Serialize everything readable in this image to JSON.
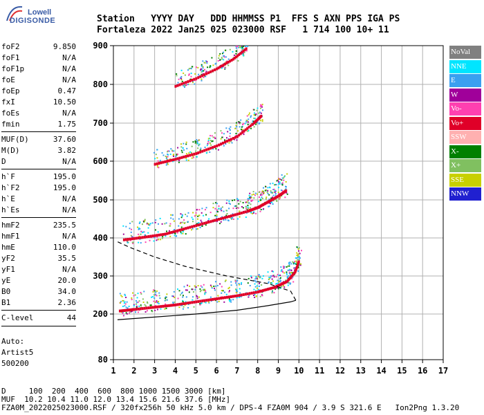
{
  "logo": {
    "line1": "Lowell",
    "line2": "DIGISONDE"
  },
  "header": {
    "line1": "Station   YYYY DAY   DDD HHMMSS P1  FFS S AXN PPS IGA PS",
    "line2": "Fortaleza 2022 Jan25 025 023000 RSF   1 714 100 10+ 11"
  },
  "params": [
    {
      "k": "foF2",
      "v": "9.850"
    },
    {
      "k": "foF1",
      "v": "N/A"
    },
    {
      "k": "foF1p",
      "v": "N/A"
    },
    {
      "k": "foE",
      "v": "N/A"
    },
    {
      "k": "foEp",
      "v": "0.47"
    },
    {
      "k": "fxI",
      "v": "10.50"
    },
    {
      "k": "foEs",
      "v": "N/A"
    },
    {
      "k": "fmin",
      "v": "1.75"
    },
    {
      "k": "MUF(D)",
      "v": "37.60"
    },
    {
      "k": "M(D)",
      "v": "3.82"
    },
    {
      "k": "D",
      "v": "N/A"
    },
    {
      "k": "h`F",
      "v": "195.0"
    },
    {
      "k": "h`F2",
      "v": "195.0"
    },
    {
      "k": "h`E",
      "v": "N/A"
    },
    {
      "k": "h`Es",
      "v": "N/A"
    },
    {
      "k": "hmF2",
      "v": "235.5"
    },
    {
      "k": "hmF1",
      "v": "N/A"
    },
    {
      "k": "hmE",
      "v": "110.0"
    },
    {
      "k": "yF2",
      "v": "35.5"
    },
    {
      "k": "yF1",
      "v": "N/A"
    },
    {
      "k": "yE",
      "v": "20.0"
    },
    {
      "k": "B0",
      "v": "34.0"
    },
    {
      "k": "B1",
      "v": "2.36"
    },
    {
      "k": "C-level",
      "v": "44"
    }
  ],
  "auto": {
    "label": "Auto:",
    "software": "Artist5",
    "id": "500200"
  },
  "footer": {
    "line1": "D     100  200  400  600  800 1000 1500 3000 [km]",
    "line2": "MUF  10.2 10.4 11.0 12.0 13.4 15.6 21.6 37.6 [MHz]",
    "line3": "FZA0M_2022025023000.RSF / 320fx256h 50 kHz 5.0 km / DPS-4 FZA0M 904 / 3.9 S 321.6 E   Ion2Png 1.3.20"
  },
  "legend": [
    {
      "label": "NoVal",
      "bg": "#808080",
      "fg": "#ffffff"
    },
    {
      "label": "NNE",
      "bg": "#00e5ff",
      "fg": "#ffffff"
    },
    {
      "label": "E",
      "bg": "#3aa0f0",
      "fg": "#ffffff"
    },
    {
      "label": "W",
      "bg": "#a0009a",
      "fg": "#ffffff"
    },
    {
      "label": "Vo-",
      "bg": "#ff40b0",
      "fg": "#ffffff"
    },
    {
      "label": "Vo+",
      "bg": "#e00028",
      "fg": "#ffffff"
    },
    {
      "label": "SSW",
      "bg": "#ffb0b0",
      "fg": "#ffffff"
    },
    {
      "label": "X-",
      "bg": "#008000",
      "fg": "#ffffff"
    },
    {
      "label": "X+",
      "bg": "#80c060",
      "fg": "#ffffff"
    },
    {
      "label": "SSE",
      "bg": "#c8d000",
      "fg": "#ffffff"
    },
    {
      "label": "NNW",
      "bg": "#2020d0",
      "fg": "#ffffff"
    }
  ],
  "chart_data": {
    "type": "scatter",
    "title": "",
    "xlabel": "",
    "ylabel": "",
    "xlim": [
      1,
      17
    ],
    "ylim": [
      80,
      900
    ],
    "x_ticks": [
      "1",
      "2",
      "3",
      "4",
      "5",
      "6",
      "7",
      "8",
      "9",
      "10",
      "11",
      "12",
      "13",
      "14",
      "15",
      "16",
      "17"
    ],
    "y_ticks": [
      "80",
      "200",
      "300",
      "400",
      "500",
      "600",
      "700",
      "800",
      "900"
    ],
    "grid": true,
    "traces": [
      {
        "name": "F2 O-trace (1st hop)",
        "color": "#e00028",
        "points": [
          [
            1.3,
            208
          ],
          [
            2,
            212
          ],
          [
            3,
            218
          ],
          [
            4,
            224
          ],
          [
            5,
            232
          ],
          [
            6,
            240
          ],
          [
            7,
            248
          ],
          [
            8,
            258
          ],
          [
            8.8,
            270
          ],
          [
            9.4,
            285
          ],
          [
            9.8,
            310
          ],
          [
            10,
            340
          ]
        ]
      },
      {
        "name": "F2 O-trace (2nd hop)",
        "color": "#e00028",
        "points": [
          [
            1.5,
            395
          ],
          [
            2.5,
            402
          ],
          [
            3.5,
            410
          ],
          [
            4.5,
            425
          ],
          [
            5.5,
            440
          ],
          [
            6.5,
            455
          ],
          [
            7.5,
            470
          ],
          [
            8,
            480
          ],
          [
            8.5,
            495
          ],
          [
            9,
            510
          ],
          [
            9.4,
            525
          ]
        ]
      },
      {
        "name": "F2 O-trace (3rd hop)",
        "color": "#e00028",
        "points": [
          [
            3,
            592
          ],
          [
            4,
            605
          ],
          [
            5,
            620
          ],
          [
            6,
            640
          ],
          [
            7,
            665
          ],
          [
            7.8,
            700
          ],
          [
            8.2,
            720
          ]
        ]
      },
      {
        "name": "F2 O-trace (4th hop)",
        "color": "#e00028",
        "points": [
          [
            4,
            795
          ],
          [
            5,
            815
          ],
          [
            6,
            840
          ],
          [
            6.8,
            865
          ],
          [
            7.5,
            895
          ]
        ]
      }
    ],
    "profile": [
      [
        1.2,
        185
      ],
      [
        3,
        192
      ],
      [
        5,
        200
      ],
      [
        7,
        210
      ],
      [
        8.5,
        222
      ],
      [
        9.6,
        232
      ],
      [
        9.85,
        236
      ],
      [
        9.6,
        260
      ],
      [
        8.5,
        280
      ],
      [
        6.5,
        300
      ],
      [
        4.5,
        325
      ],
      [
        3,
        350
      ],
      [
        1.8,
        375
      ],
      [
        1.2,
        390
      ]
    ]
  }
}
